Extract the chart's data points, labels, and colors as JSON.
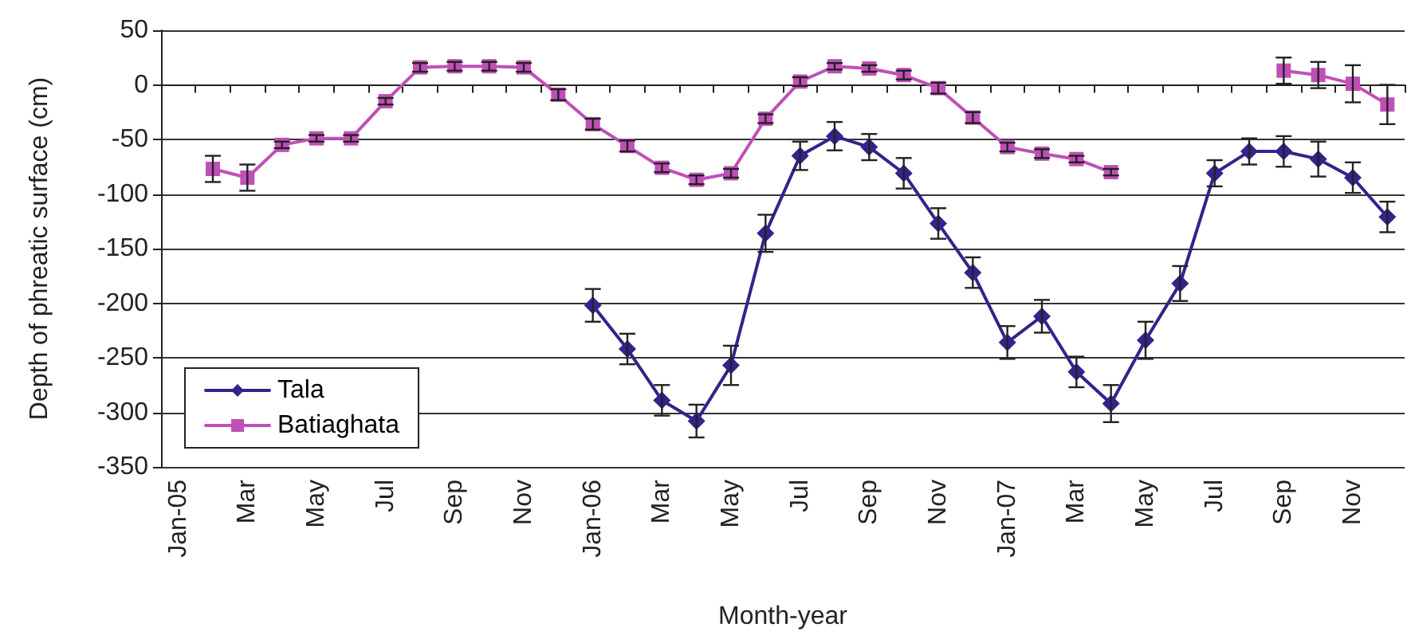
{
  "chart_data": {
    "type": "line",
    "xlabel": "Month-year",
    "ylabel": "Depth of phreatic surface (cm)",
    "categories": [
      "Jan-05",
      null,
      "Mar",
      null,
      "May",
      null,
      "Jul",
      null,
      "Sep",
      null,
      "Nov",
      null,
      "Jan-06",
      null,
      "Mar",
      null,
      "May",
      null,
      "Jul",
      null,
      "Sep",
      null,
      "Nov",
      null,
      "Jan-07",
      null,
      "Mar",
      null,
      "May",
      null,
      "Jul",
      null,
      "Sep",
      null,
      "Nov",
      null
    ],
    "series": [
      {
        "name": "Tala",
        "color": "#35228a",
        "marker": "diamond",
        "values": [
          null,
          null,
          null,
          null,
          null,
          null,
          null,
          null,
          null,
          null,
          null,
          null,
          -202,
          -242,
          -289,
          -308,
          -257,
          -136,
          -65,
          -47,
          -57,
          -81,
          -127,
          -172,
          -236,
          -212,
          -263,
          -292,
          -234,
          -182,
          -81,
          -61,
          -61,
          -68,
          -85,
          -121
        ],
        "errors": [
          null,
          null,
          null,
          null,
          null,
          null,
          null,
          null,
          null,
          null,
          null,
          null,
          15,
          14,
          14,
          15,
          18,
          17,
          13,
          13,
          12,
          14,
          14,
          14,
          15,
          15,
          14,
          17,
          17,
          16,
          12,
          12,
          14,
          16,
          14,
          14
        ]
      },
      {
        "name": "Batiaghata",
        "color": "#c04fb8",
        "marker": "square",
        "values": [
          null,
          -77,
          -85,
          -55,
          -49,
          -49,
          -15,
          16,
          17,
          17,
          16,
          -9,
          -36,
          -56,
          -76,
          -87,
          -81,
          -31,
          3,
          17,
          15,
          9,
          -3,
          -30,
          -57,
          -63,
          -68,
          -80,
          null,
          null,
          null,
          null,
          13,
          9,
          1,
          -18
        ],
        "errors": [
          null,
          12,
          12,
          3,
          3,
          3,
          3,
          4,
          4,
          4,
          4,
          5,
          5,
          5,
          4,
          4,
          4,
          4,
          4,
          3,
          3,
          4,
          5,
          5,
          4,
          4,
          3,
          3,
          null,
          null,
          null,
          null,
          12,
          12,
          17,
          18
        ]
      }
    ],
    "ylim": [
      -350,
      50
    ],
    "yticks": [
      -350,
      -300,
      -250,
      -200,
      -150,
      -100,
      -50,
      0,
      50
    ],
    "grid": "y",
    "legend": "bottom left",
    "line_style": "solid"
  }
}
